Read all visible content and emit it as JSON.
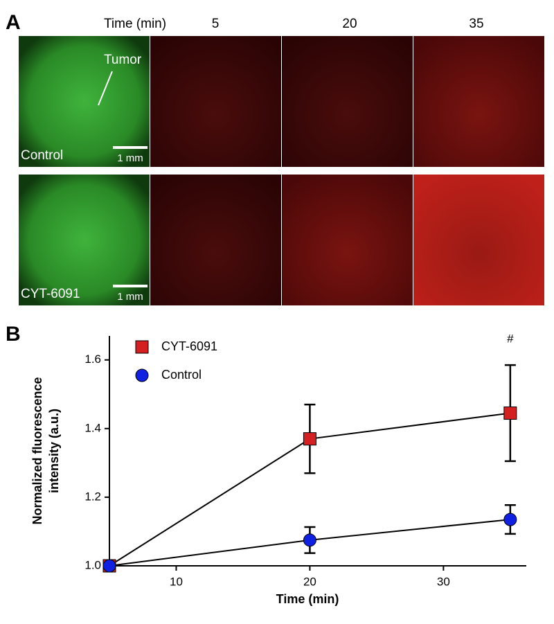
{
  "panel_a": {
    "label": "A",
    "time_header": "Time (min)",
    "times": [
      "5",
      "20",
      "35"
    ],
    "rows": [
      {
        "label": "Control",
        "scale_bar": "1 mm",
        "annotation": "Tumor"
      },
      {
        "label": "CYT-6091",
        "scale_bar": "1 mm"
      }
    ]
  },
  "chart_data": {
    "type": "line",
    "panel_label": "B",
    "xlabel": "Time (min)",
    "ylabel": [
      "Normalized fluorescence",
      "intensity (a.u.)"
    ],
    "x": [
      5,
      20,
      35
    ],
    "series": [
      {
        "name": "CYT-6091",
        "color": "#d42020",
        "marker": "square",
        "values": [
          1.0,
          1.37,
          1.445
        ],
        "errors": [
          0,
          0.1,
          0.14
        ]
      },
      {
        "name": "Control",
        "color": "#1020e0",
        "marker": "circle",
        "values": [
          1.0,
          1.075,
          1.135
        ],
        "errors": [
          0,
          0.038,
          0.042
        ]
      }
    ],
    "xlim": [
      5,
      36.2
    ],
    "ylim": [
      1.0,
      1.67
    ],
    "xticks": [
      10,
      20,
      30
    ],
    "yticks": [
      {
        "value": 1.0,
        "label": "1.0"
      },
      {
        "value": 1.2,
        "label": "1.2"
      },
      {
        "value": 1.4,
        "label": "1.4"
      },
      {
        "value": 1.6,
        "label": "1.6"
      }
    ],
    "annotations": [
      {
        "text": "#",
        "x": 35,
        "y": 1.66
      }
    ],
    "legend": "upper left"
  }
}
